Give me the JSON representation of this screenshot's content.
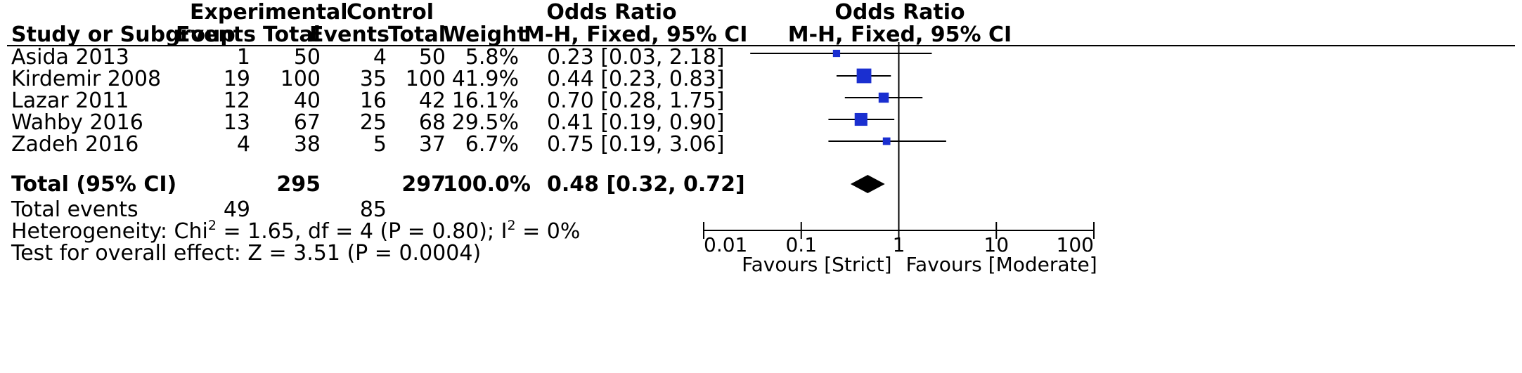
{
  "headers": {
    "group1": "Experimental",
    "group2": "Control",
    "or_top": "Odds Ratio",
    "or_bottom": "M-H, Fixed, 95% CI",
    "plot_top": "Odds Ratio",
    "plot_bottom": "M-H, Fixed, 95% CI",
    "study": "Study or Subgroup",
    "events1": "Events",
    "total1": "Total",
    "events2": "Events",
    "total2": "Total",
    "weight": "Weight"
  },
  "studies": [
    {
      "name": "Asida 2013",
      "e1": "1",
      "n1": "50",
      "e2": "4",
      "n2": "50",
      "weight": "5.8%",
      "ci_text": "0.23 [0.03, 2.18]"
    },
    {
      "name": "Kirdemir 2008",
      "e1": "19",
      "n1": "100",
      "e2": "35",
      "n2": "100",
      "weight": "41.9%",
      "ci_text": "0.44 [0.23, 0.83]"
    },
    {
      "name": "Lazar 2011",
      "e1": "12",
      "n1": "40",
      "e2": "16",
      "n2": "42",
      "weight": "16.1%",
      "ci_text": "0.70 [0.28, 1.75]"
    },
    {
      "name": "Wahby 2016",
      "e1": "13",
      "n1": "67",
      "e2": "25",
      "n2": "68",
      "weight": "29.5%",
      "ci_text": "0.41 [0.19, 0.90]"
    },
    {
      "name": "Zadeh 2016",
      "e1": "4",
      "n1": "38",
      "e2": "5",
      "n2": "37",
      "weight": "6.7%",
      "ci_text": "0.75 [0.19, 3.06]"
    }
  ],
  "total": {
    "label": "Total (95% CI)",
    "n1": "295",
    "n2": "297",
    "weight": "100.0%",
    "ci_text": "0.48 [0.32, 0.72]"
  },
  "events_row": {
    "label": "Total events",
    "e1": "49",
    "e2": "85"
  },
  "heterogeneity": {
    "prefix": "Heterogeneity: Chi",
    "sup1": "2",
    "mid": " = 1.65, df = 4 (P = 0.80); I",
    "sup2": "2",
    "suffix": " = 0%"
  },
  "overall": "Test for overall effect: Z = 3.51 (P = 0.0004)",
  "axis": {
    "ticks": [
      "0.01",
      "0.1",
      "1",
      "10",
      "100"
    ],
    "favours_left": "Favours [Strict]",
    "favours_right": "Favours [Moderate]"
  },
  "colors": {
    "marker": "#1a2fd0",
    "line": "#000000"
  },
  "chart_data": {
    "type": "forest",
    "scale": "log",
    "xlim": [
      0.01,
      100
    ],
    "null_value": 1,
    "studies": [
      {
        "name": "Asida 2013",
        "or": 0.23,
        "lower": 0.03,
        "upper": 2.18,
        "weight": 5.8
      },
      {
        "name": "Kirdemir 2008",
        "or": 0.44,
        "lower": 0.23,
        "upper": 0.83,
        "weight": 41.9
      },
      {
        "name": "Lazar 2011",
        "or": 0.7,
        "lower": 0.28,
        "upper": 1.75,
        "weight": 16.1
      },
      {
        "name": "Wahby 2016",
        "or": 0.41,
        "lower": 0.19,
        "upper": 0.9,
        "weight": 29.5
      },
      {
        "name": "Zadeh 2016",
        "or": 0.75,
        "lower": 0.19,
        "upper": 3.06,
        "weight": 6.7
      }
    ],
    "pooled": {
      "or": 0.48,
      "lower": 0.32,
      "upper": 0.72
    }
  }
}
